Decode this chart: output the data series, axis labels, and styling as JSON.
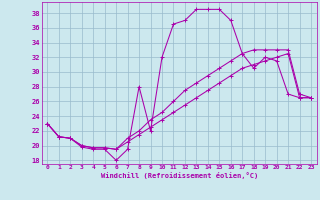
{
  "xlabel": "Windchill (Refroidissement éolien,°C)",
  "background_color": "#cce8ee",
  "grid_color": "#99bbcc",
  "line_color": "#aa00aa",
  "xlim": [
    -0.5,
    23.5
  ],
  "ylim": [
    17.5,
    39.5
  ],
  "yticks": [
    18,
    20,
    22,
    24,
    26,
    28,
    30,
    32,
    34,
    36,
    38
  ],
  "xticks": [
    0,
    1,
    2,
    3,
    4,
    5,
    6,
    7,
    8,
    9,
    10,
    11,
    12,
    13,
    14,
    15,
    16,
    17,
    18,
    19,
    20,
    21,
    22,
    23
  ],
  "line1_x": [
    0,
    1,
    2,
    3,
    4,
    5,
    6,
    7,
    8,
    9,
    10,
    11,
    12,
    13,
    14,
    15,
    16,
    17,
    18,
    19,
    20,
    21,
    22,
    23
  ],
  "line1_y": [
    23.0,
    21.2,
    21.0,
    19.8,
    19.5,
    19.5,
    18.0,
    19.5,
    28.0,
    22.0,
    32.0,
    36.5,
    37.0,
    38.5,
    38.5,
    38.5,
    37.0,
    32.5,
    30.5,
    32.0,
    31.5,
    27.0,
    26.5,
    26.5
  ],
  "line2_x": [
    0,
    1,
    2,
    3,
    4,
    5,
    6,
    7,
    8,
    9,
    10,
    11,
    12,
    13,
    14,
    15,
    16,
    17,
    18,
    19,
    20,
    21,
    22,
    23
  ],
  "line2_y": [
    23.0,
    21.2,
    21.0,
    20.0,
    19.7,
    19.7,
    19.5,
    20.5,
    21.5,
    22.5,
    23.5,
    24.5,
    25.5,
    26.5,
    27.5,
    28.5,
    29.5,
    30.5,
    31.0,
    31.5,
    32.0,
    32.5,
    26.5,
    26.5
  ],
  "line3_x": [
    0,
    1,
    2,
    3,
    4,
    5,
    6,
    7,
    8,
    9,
    10,
    11,
    12,
    13,
    14,
    15,
    16,
    17,
    18,
    19,
    20,
    21,
    22,
    23
  ],
  "line3_y": [
    23.0,
    21.2,
    21.0,
    20.0,
    19.7,
    19.7,
    19.5,
    21.0,
    22.0,
    23.5,
    24.5,
    26.0,
    27.5,
    28.5,
    29.5,
    30.5,
    31.5,
    32.5,
    33.0,
    33.0,
    33.0,
    33.0,
    27.0,
    26.5
  ]
}
